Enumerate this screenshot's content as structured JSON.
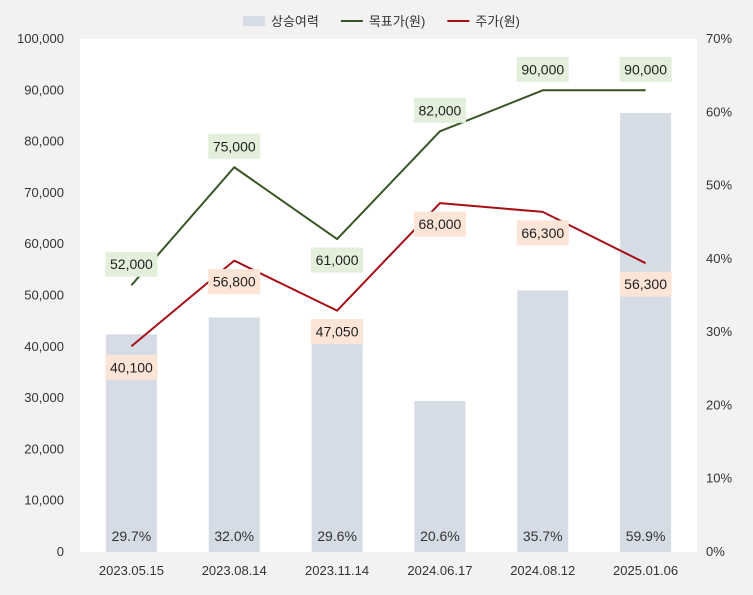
{
  "chart_data": {
    "type": "bar",
    "categories": [
      "2023.05.15",
      "2023.08.14",
      "2023.11.14",
      "2024.06.17",
      "2024.08.12",
      "2025.01.06"
    ],
    "series": [
      {
        "name": "상승여력",
        "kind": "bar",
        "axis": "right",
        "color": "#d6dce5",
        "values": [
          29.7,
          32.0,
          29.6,
          20.6,
          35.7,
          59.9
        ],
        "labels": [
          "29.7%",
          "32.0%",
          "29.6%",
          "20.6%",
          "35.7%",
          "59.9%"
        ]
      },
      {
        "name": "목표가(원)",
        "kind": "line",
        "axis": "left",
        "color": "#375623",
        "label_bg": "#e2efda",
        "values": [
          52000,
          75000,
          61000,
          82000,
          90000,
          90000
        ],
        "labels": [
          "52,000",
          "75,000",
          "61,000",
          "82,000",
          "90,000",
          "90,000"
        ]
      },
      {
        "name": "주가(원)",
        "kind": "line",
        "axis": "left",
        "color": "#a50f15",
        "label_bg": "#fce4d6",
        "values": [
          40100,
          56800,
          47050,
          68000,
          66300,
          56300
        ],
        "labels": [
          "40,100",
          "56,800",
          "47,050",
          "68,000",
          "66,300",
          "56,300"
        ]
      }
    ],
    "y_left": {
      "min": 0,
      "max": 100000,
      "ticks": [
        "0",
        "10,000",
        "20,000",
        "30,000",
        "40,000",
        "50,000",
        "60,000",
        "70,000",
        "80,000",
        "90,000",
        "100,000"
      ]
    },
    "y_right": {
      "min": 0,
      "max": 70,
      "ticks": [
        "0%",
        "10%",
        "20%",
        "30%",
        "40%",
        "50%",
        "60%",
        "70%"
      ]
    },
    "grid": false,
    "legend_position": "top"
  }
}
